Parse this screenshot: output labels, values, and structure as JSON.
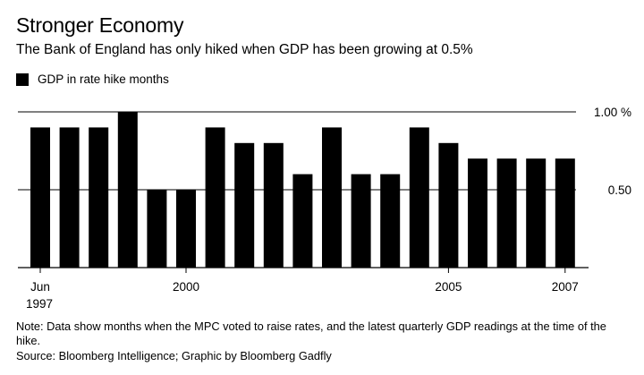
{
  "header": {
    "title": "Stronger Economy",
    "subtitle": "The Bank of England has only hiked when GDP has been growing at 0.5%"
  },
  "legend": {
    "label": "GDP in rate hike months"
  },
  "footer": {
    "note": "Note: Data show months when the MPC voted to raise rates, and the latest quarterly GDP readings at the time of the hike.",
    "source": "Source: Bloomberg Intelligence; Graphic by Bloomberg Gadfly"
  },
  "colors": {
    "bar": "#000000",
    "axis": "#000000",
    "background": "#ffffff"
  },
  "chart_data": {
    "type": "bar",
    "title": "Stronger Economy",
    "subtitle": "The Bank of England has only hiked when GDP has been growing at 0.5%",
    "series": [
      {
        "name": "GDP in rate hike months",
        "values": [
          0.9,
          0.9,
          0.9,
          1.0,
          0.5,
          0.5,
          0.9,
          0.8,
          0.8,
          0.6,
          0.9,
          0.6,
          0.6,
          0.9,
          0.8,
          0.7,
          0.7,
          0.7,
          0.7
        ]
      }
    ],
    "ylim": [
      0,
      1.0
    ],
    "y_ticks": [
      {
        "value": 1.0,
        "label": "1.00 %"
      },
      {
        "value": 0.5,
        "label": "0.50"
      }
    ],
    "x_ticks": [
      {
        "bar_index": 0,
        "label": "Jun",
        "label2": "1997"
      },
      {
        "bar_index": 5,
        "label": "2000"
      },
      {
        "bar_index": 14,
        "label": "2005"
      },
      {
        "bar_index": 18,
        "label": "2007"
      }
    ],
    "grid": true,
    "y_axis_position": "right",
    "legend_position": "top-left"
  }
}
